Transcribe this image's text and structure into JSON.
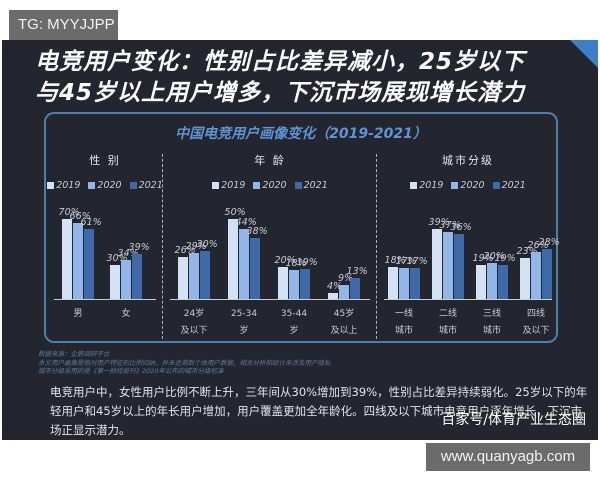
{
  "watermark_top": "TG: MYYJJPP",
  "headline": {
    "line1": "电竞用户变化：性别占比差异减小，25岁以下",
    "line2": "与45岁以上用户增多，下沉市场展现增长潜力"
  },
  "colors": {
    "panel_bg": "#23262f",
    "series_2019": "#d3e2f5",
    "series_2020": "#93b6e6",
    "series_2021": "#3f6aa8",
    "accent": "#5f93d6"
  },
  "legend": [
    "2019",
    "2020",
    "2021"
  ],
  "chart_data": [
    {
      "type": "bar",
      "title": "中国电竞用户画像变化（2019-2021）",
      "subtitle": "性 别",
      "categories": [
        "男",
        "女"
      ],
      "series": [
        {
          "name": "2019",
          "values": [
            70,
            30
          ]
        },
        {
          "name": "2020",
          "values": [
            66,
            34
          ]
        },
        {
          "name": "2021",
          "values": [
            61,
            39
          ]
        }
      ],
      "unit": "%",
      "ylim": [
        0,
        80
      ],
      "grid": false,
      "legend_position": "top"
    },
    {
      "type": "bar",
      "title": "中国电竞用户画像变化（2019-2021）",
      "subtitle": "年 龄",
      "categories": [
        "24岁及以下",
        "25-34岁",
        "35-44岁",
        "45岁及以上"
      ],
      "series": [
        {
          "name": "2019",
          "values": [
            26,
            50,
            20,
            4
          ]
        },
        {
          "name": "2020",
          "values": [
            29,
            44,
            18,
            9
          ]
        },
        {
          "name": "2021",
          "values": [
            30,
            38,
            19,
            13
          ]
        }
      ],
      "unit": "%",
      "ylim": [
        0,
        60
      ],
      "grid": false,
      "legend_position": "top"
    },
    {
      "type": "bar",
      "title": "中国电竞用户画像变化（2019-2021）",
      "subtitle": "城市分级",
      "categories": [
        "一线城市",
        "二线城市",
        "三线城市",
        "四线及以下"
      ],
      "series": [
        {
          "name": "2019",
          "values": [
            18,
            39,
            19,
            23
          ]
        },
        {
          "name": "2020",
          "values": [
            17,
            37,
            20,
            26
          ]
        },
        {
          "name": "2021",
          "values": [
            17,
            36,
            19,
            28
          ]
        }
      ],
      "unit": "%",
      "ylim": [
        0,
        50
      ],
      "grid": false,
      "legend_position": "top"
    }
  ],
  "card": {
    "title": "中国电竞用户画像变化（2019-2021）",
    "gender": {
      "title": "性 别",
      "cats": [
        {
          "l1": "男",
          "l2": "",
          "v": [
            "70%",
            "66%",
            "61%"
          ]
        },
        {
          "l1": "女",
          "l2": "",
          "v": [
            "30%",
            "34%",
            "39%"
          ]
        }
      ]
    },
    "age": {
      "title": "年 龄",
      "cats": [
        {
          "l1": "24岁",
          "l2": "及以下",
          "v": [
            "26%",
            "29%",
            "30%"
          ]
        },
        {
          "l1": "25-34",
          "l2": "岁",
          "v": [
            "50%",
            "44%",
            "38%"
          ]
        },
        {
          "l1": "35-44",
          "l2": "岁",
          "v": [
            "20%",
            "18%",
            "19%"
          ]
        },
        {
          "l1": "45岁",
          "l2": "及以上",
          "v": [
            "4%",
            "9%",
            "13%"
          ]
        }
      ]
    },
    "city": {
      "title": "城市分级",
      "cats": [
        {
          "l1": "一线",
          "l2": "城市",
          "v": [
            "18%",
            "17%",
            "17%"
          ]
        },
        {
          "l1": "二线",
          "l2": "城市",
          "v": [
            "39%",
            "37%",
            "36%"
          ]
        },
        {
          "l1": "三线",
          "l2": "城市",
          "v": [
            "19%",
            "20%",
            "19%"
          ]
        },
        {
          "l1": "四线",
          "l2": "及以下",
          "v": [
            "23%",
            "26%",
            "28%"
          ]
        }
      ]
    }
  },
  "footnote": {
    "line1": "数据来源：企鹅调研平台",
    "line2": "本文用户画像是指对用户特征的比例归纳，并未追溯到个体用户数据，相关分析和统计未涉及用户隐私",
    "line3": "城市分级采用的是《第一财经周刊》2020年公布的城市分级标准"
  },
  "body_text": "电竞用户中，女性用户比例不断上升，三年间从30%增加到39%，性别占比差异持续弱化。25岁以下的年轻用户和45岁以上的年长用户增加，用户覆盖更加全年龄化。四线及以下城市电竞用户逐年增长，下沉市场正显示潜力。",
  "source_mark": "百家号/体育产业生态圈",
  "watermark_bottom": "www.quanyagb.com"
}
